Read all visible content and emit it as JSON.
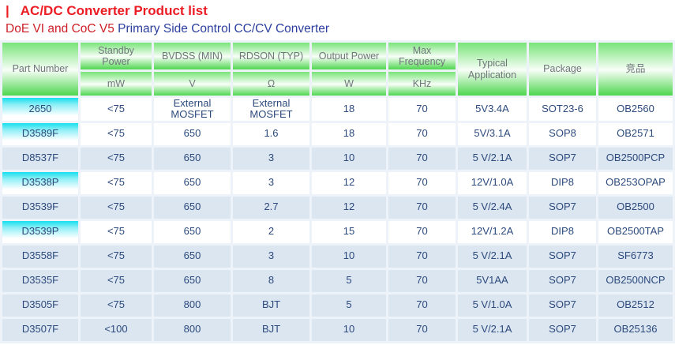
{
  "page": {
    "title_marker": "|",
    "title": "AC/DC Converter Product list",
    "subtitle_red": "DoE VI and CoC V5",
    "subtitle_blue": " Primary Side Control CC/CV Converter"
  },
  "colors": {
    "title_red": "#ec1c24",
    "subtitle_red": "#cd2027",
    "subtitle_blue": "#2c3f9e",
    "header_green": "#4ed64e",
    "header_text_gray": "#70757a",
    "data_text_navy": "#2c4a7c",
    "row_alt_blue": "#dce6f1",
    "part_cell_cyan": "#15dfee"
  },
  "table": {
    "columns": [
      {
        "label": "Part Number",
        "unit": ""
      },
      {
        "label": "Standby Power",
        "unit": "mW"
      },
      {
        "label": "BVDSS (MIN)",
        "unit": "V"
      },
      {
        "label": "RDSON (TYP)",
        "unit": "Ω"
      },
      {
        "label": "Output Power",
        "unit": "W"
      },
      {
        "label": "Max Frequency",
        "unit": "KHz"
      },
      {
        "label": "Typical Application",
        "unit": ""
      },
      {
        "label": "Package",
        "unit": ""
      },
      {
        "label": "竞品",
        "unit": ""
      }
    ],
    "rows": [
      {
        "part": "2650",
        "standby": "<75",
        "bvdss": "External MOSFET",
        "rdson": "External MOSFET",
        "power": "18",
        "freq": "70",
        "app": "5V3.4A",
        "pkg": "SOT23-6",
        "competitor": "OB2560",
        "shaded": false
      },
      {
        "part": "D3589F",
        "standby": "<75",
        "bvdss": "650",
        "rdson": "1.6",
        "power": "18",
        "freq": "70",
        "app": "5V/3.1A",
        "pkg": "SOP8",
        "competitor": "OB2571",
        "shaded": false
      },
      {
        "part": "D8537F",
        "standby": "<75",
        "bvdss": "650",
        "rdson": "3",
        "power": "10",
        "freq": "70",
        "app": "5 V/2.1A",
        "pkg": "SOP7",
        "competitor": "OB2500PCP",
        "shaded": true
      },
      {
        "part": "D3538P",
        "standby": "<75",
        "bvdss": "650",
        "rdson": "3",
        "power": "12",
        "freq": "70",
        "app": "12V/1.0A",
        "pkg": "DIP8",
        "competitor": "OB253OPAP",
        "shaded": false
      },
      {
        "part": "D3539F",
        "standby": "<75",
        "bvdss": "650",
        "rdson": "2.7",
        "power": "12",
        "freq": "70",
        "app": "5 V/2.4A",
        "pkg": "SOP7",
        "competitor": "OB2500",
        "shaded": true
      },
      {
        "part": "D3539P",
        "standby": "<75",
        "bvdss": "650",
        "rdson": "2",
        "power": "15",
        "freq": "70",
        "app": "12V/1.2A",
        "pkg": "DIP8",
        "competitor": "OB2500TAP",
        "shaded": false
      },
      {
        "part": "D3558F",
        "standby": "<75",
        "bvdss": "650",
        "rdson": "3",
        "power": "10",
        "freq": "70",
        "app": "5 V/2.1A",
        "pkg": "SOP7",
        "competitor": "SF6773",
        "shaded": true
      },
      {
        "part": "D3535F",
        "standby": "<75",
        "bvdss": "650",
        "rdson": "8",
        "power": "5",
        "freq": "70",
        "app": "5V1AA",
        "pkg": "SOP7",
        "competitor": "OB2500NCP",
        "shaded": true
      },
      {
        "part": "D3505F",
        "standby": "<75",
        "bvdss": "800",
        "rdson": "BJT",
        "power": "5",
        "freq": "70",
        "app": "5 V/1.0A",
        "pkg": "SOP7",
        "competitor": "OB2512",
        "shaded": true
      },
      {
        "part": "D3507F",
        "standby": "<100",
        "bvdss": "800",
        "rdson": "BJT",
        "power": "10",
        "freq": "70",
        "app": "5 V/2.1A",
        "pkg": "SOP7",
        "competitor": "OB25136",
        "shaded": true
      }
    ]
  }
}
